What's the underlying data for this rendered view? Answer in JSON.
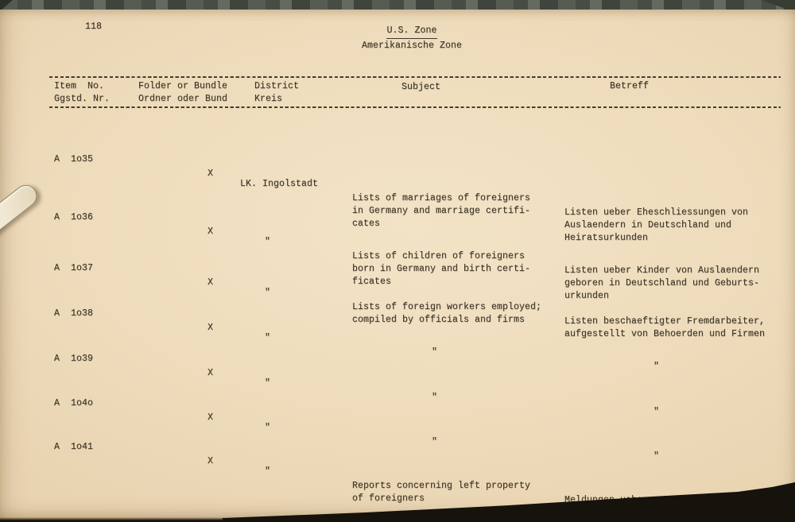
{
  "page": {
    "page_number": "118",
    "title_line1": "U.S. Zone",
    "title_line2": "Amerikanische Zone"
  },
  "table": {
    "header": {
      "item_en": "Item  No.",
      "item_de": "Ggstd. Nr.",
      "folder_en": "Folder or Bundle",
      "folder_de": "Ordner oder Bund",
      "district_en": "District",
      "district_de": "Kreis",
      "subject": "Subject",
      "betreff": "Betreff"
    },
    "rows": [
      {
        "item": "A  1o35",
        "folder": "X",
        "district": "LK. Ingolstadt",
        "subject": "Lists of marriages of foreigners\nin Germany and marriage certifi-\ncates",
        "betreff": "Listen ueber Eheschliessungen von\nAuslaendern in Deutschland und\nHeiratsurkunden"
      },
      {
        "item": "A  1o36",
        "folder": "X",
        "district": "\"",
        "subject": "Lists of children of foreigners\nborn in Germany and birth certi-\nficates",
        "betreff": "Listen ueber Kinder von Auslaendern\ngeboren in Deutschland und Geburts-\nurkunden"
      },
      {
        "item": "A  1o37",
        "folder": "X",
        "district": "\"",
        "subject": "Lists of foreign workers employed;\ncompiled by officials and firms",
        "betreff": "Listen beschaeftigter Fremdarbeiter,\naufgestellt von Behoerden und Firmen"
      },
      {
        "item": "A  1o38",
        "folder": "X",
        "district": "\"",
        "subject": "\"",
        "betreff": "\""
      },
      {
        "item": "A  1o39",
        "folder": "X",
        "district": "\"",
        "subject": "\"",
        "betreff": "\""
      },
      {
        "item": "A  1o4o",
        "folder": "X",
        "district": "\"",
        "subject": "\"",
        "betreff": "\""
      },
      {
        "item": "A  1o41",
        "folder": "X",
        "district": "\"",
        "subject": "Reports concerning left property\nof foreigners",
        "betreff": "Meldungen ueber zurueckgelassenes\nEigentum von Auslaendern"
      }
    ]
  }
}
